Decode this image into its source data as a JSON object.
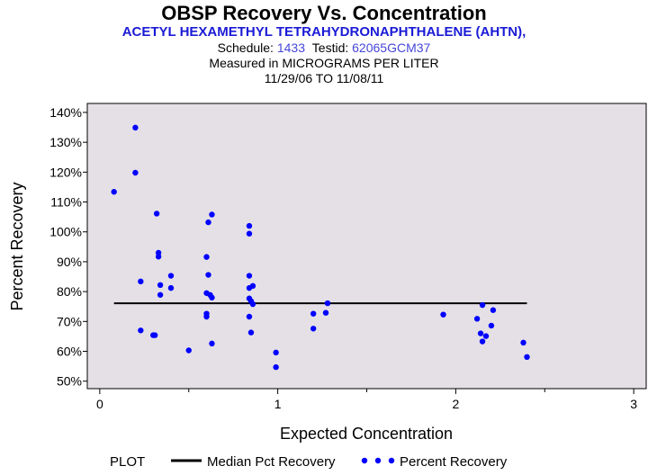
{
  "header": {
    "title": "OBSP Recovery Vs. Concentration",
    "subtitle": "ACETYL HEXAMETHYL TETRAHYDRONAPHTHALENE (AHTN),",
    "schedule_label": "Schedule:",
    "schedule_value": "1433",
    "testid_label": "Testid:",
    "testid_value": "62065GCM37",
    "measured_label": "Measured in",
    "measured_value": "MICROGRAMS PER LITER",
    "date_range": "11/29/06 TO 11/08/11"
  },
  "legend": {
    "plot_label": "PLOT",
    "median_label": "Median Pct Recovery",
    "points_label": "Percent Recovery"
  },
  "colors": {
    "plot_background": "#e5e0e6",
    "points": "#0000ff",
    "median_line": "#000000",
    "subtitle": "#1a1ad6"
  },
  "chart_data": {
    "type": "scatter",
    "title": "OBSP Recovery Vs. Concentration",
    "xlabel": "Expected Concentration",
    "ylabel": "Percent Recovery",
    "xlim": [
      -0.07,
      3.07
    ],
    "ylim": [
      47.5,
      143
    ],
    "x_ticks": [
      0,
      1,
      2,
      3
    ],
    "x_minor_ticks": [
      0.5,
      1.5,
      2.5
    ],
    "y_ticks": [
      50,
      60,
      70,
      80,
      90,
      100,
      110,
      120,
      130,
      140
    ],
    "y_tick_labels": [
      "50%",
      "60%",
      "70%",
      "80%",
      "90%",
      "100%",
      "110%",
      "120%",
      "130%",
      "140%"
    ],
    "grid": false,
    "median": {
      "name": "Median Pct Recovery",
      "value": 76.1,
      "x_start": 0.08,
      "x_end": 2.4
    },
    "series": [
      {
        "name": "Percent Recovery",
        "points": [
          [
            0.08,
            113.4
          ],
          [
            0.2,
            134.9
          ],
          [
            0.2,
            119.8
          ],
          [
            0.23,
            83.4
          ],
          [
            0.23,
            67.0
          ],
          [
            0.3,
            65.4
          ],
          [
            0.31,
            65.4
          ],
          [
            0.32,
            106.1
          ],
          [
            0.33,
            93.0
          ],
          [
            0.33,
            91.7
          ],
          [
            0.34,
            82.2
          ],
          [
            0.34,
            78.9
          ],
          [
            0.4,
            85.3
          ],
          [
            0.4,
            81.2
          ],
          [
            0.5,
            60.3
          ],
          [
            0.6,
            91.6
          ],
          [
            0.6,
            79.5
          ],
          [
            0.6,
            72.6
          ],
          [
            0.6,
            71.6
          ],
          [
            0.61,
            103.2
          ],
          [
            0.61,
            85.6
          ],
          [
            0.62,
            78.9
          ],
          [
            0.63,
            105.8
          ],
          [
            0.63,
            78.0
          ],
          [
            0.63,
            62.6
          ],
          [
            0.84,
            102.0
          ],
          [
            0.84,
            99.4
          ],
          [
            0.84,
            85.3
          ],
          [
            0.84,
            81.2
          ],
          [
            0.84,
            77.7
          ],
          [
            0.84,
            71.6
          ],
          [
            0.85,
            76.8
          ],
          [
            0.85,
            66.3
          ],
          [
            0.86,
            81.9
          ],
          [
            0.86,
            75.8
          ],
          [
            0.99,
            59.6
          ],
          [
            0.99,
            54.7
          ],
          [
            1.2,
            72.6
          ],
          [
            1.2,
            67.6
          ],
          [
            1.27,
            72.9
          ],
          [
            1.28,
            76.1
          ],
          [
            1.93,
            72.3
          ],
          [
            2.12,
            70.9
          ],
          [
            2.14,
            66.0
          ],
          [
            2.15,
            75.5
          ],
          [
            2.15,
            63.3
          ],
          [
            2.17,
            65.1
          ],
          [
            2.2,
            68.6
          ],
          [
            2.21,
            73.8
          ],
          [
            2.38,
            62.9
          ],
          [
            2.4,
            58.1
          ]
        ]
      }
    ]
  }
}
